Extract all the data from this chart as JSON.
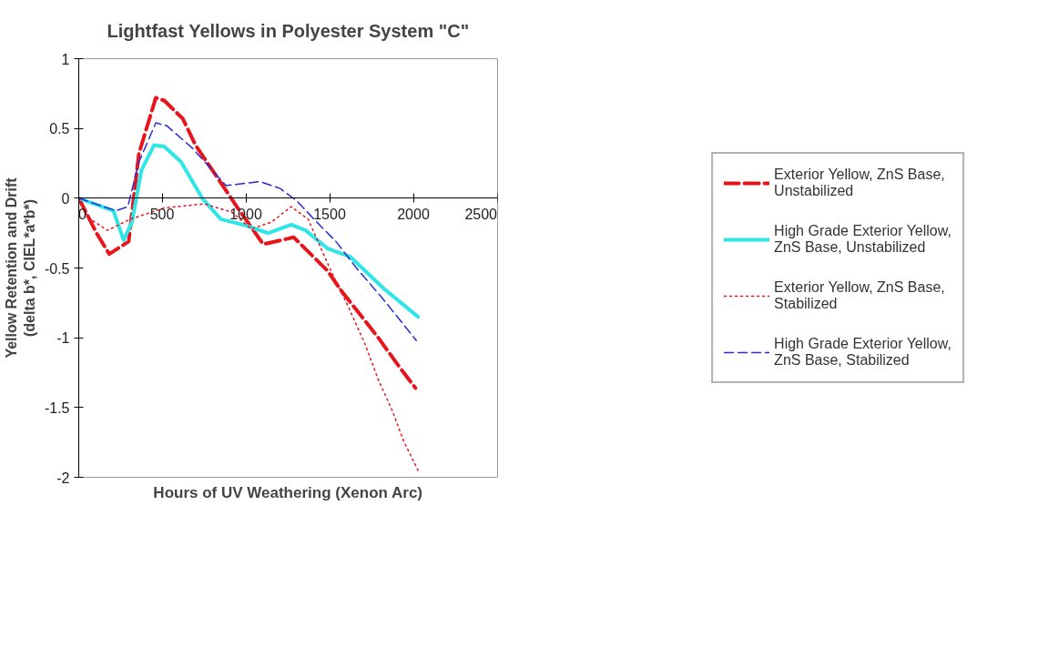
{
  "chart_data": {
    "type": "line",
    "title": "Lightfast Yellows in Polyester System \"C\"",
    "xlabel": "Hours of UV Weathering (Xenon Arc)",
    "ylabel": "Yellow Retention and Drift\n(delta b*, CIEL*a*b*)",
    "xlim": [
      0,
      2500
    ],
    "xticks": [
      0,
      500,
      1000,
      1500,
      2000,
      2500
    ],
    "ylim": [
      -2,
      1
    ],
    "yticks": [
      -2,
      -1.5,
      -1,
      -0.5,
      0,
      0.5,
      1
    ],
    "grid": false,
    "legend": "right",
    "marker": "none",
    "series": [
      {
        "name": "Exterior Yellow, ZnS Base, Unstabilized",
        "color": "#e8141c",
        "line_style": "dashed",
        "x": [
          0,
          106,
          182,
          298,
          359,
          460,
          510,
          621,
          697,
          798,
          949,
          1101,
          1283,
          1485,
          1571,
          1697,
          1788,
          1914,
          2010
        ],
        "values": [
          0,
          -0.25,
          -0.4,
          -0.31,
          0.32,
          0.72,
          0.7,
          0.57,
          0.38,
          0.2,
          -0.07,
          -0.33,
          -0.28,
          -0.52,
          -0.67,
          -0.86,
          -1.0,
          -1.21,
          -1.36
        ]
      },
      {
        "name": "High Grade Exterior Yellow, ZnS Base, Unstabilized",
        "color": "#2ee6e6",
        "line_style": "solid",
        "x": [
          0,
          207,
          268,
          318,
          374,
          449,
          510,
          611,
          737,
          848,
          980,
          1131,
          1268,
          1354,
          1485,
          1621,
          1823,
          2025
        ],
        "values": [
          0,
          -0.09,
          -0.3,
          -0.17,
          0.2,
          0.38,
          0.37,
          0.26,
          0,
          -0.15,
          -0.19,
          -0.25,
          -0.19,
          -0.23,
          -0.36,
          -0.42,
          -0.65,
          -0.85
        ]
      },
      {
        "name": "Exterior Yellow, ZnS Base, Stabilized",
        "color": "#e8141c",
        "line_style": "dotted",
        "x": [
          0,
          56,
          172,
          308,
          510,
          747,
          914,
          1030,
          1152,
          1268,
          1369,
          1505,
          1606,
          1707,
          1788,
          1874,
          1939,
          2025
        ],
        "values": [
          0,
          -0.14,
          -0.23,
          -0.15,
          -0.07,
          -0.04,
          -0.1,
          -0.22,
          -0.17,
          -0.06,
          -0.15,
          -0.52,
          -0.77,
          -1.04,
          -1.3,
          -1.53,
          -1.74,
          -1.95
        ]
      },
      {
        "name": "High Grade Exterior Yellow, ZnS Base, Stabilized",
        "color": "#2b2bd0",
        "line_style": "dashed",
        "x": [
          0,
          222,
          293,
          359,
          460,
          525,
          677,
          798,
          879,
          1081,
          1202,
          1303,
          1404,
          1535,
          1657,
          1808,
          2015
        ],
        "values": [
          0,
          -0.09,
          -0.06,
          0.26,
          0.54,
          0.52,
          0.36,
          0.2,
          0.09,
          0.12,
          0.07,
          -0.02,
          -0.15,
          -0.31,
          -0.5,
          -0.71,
          -1.02
        ]
      }
    ]
  }
}
